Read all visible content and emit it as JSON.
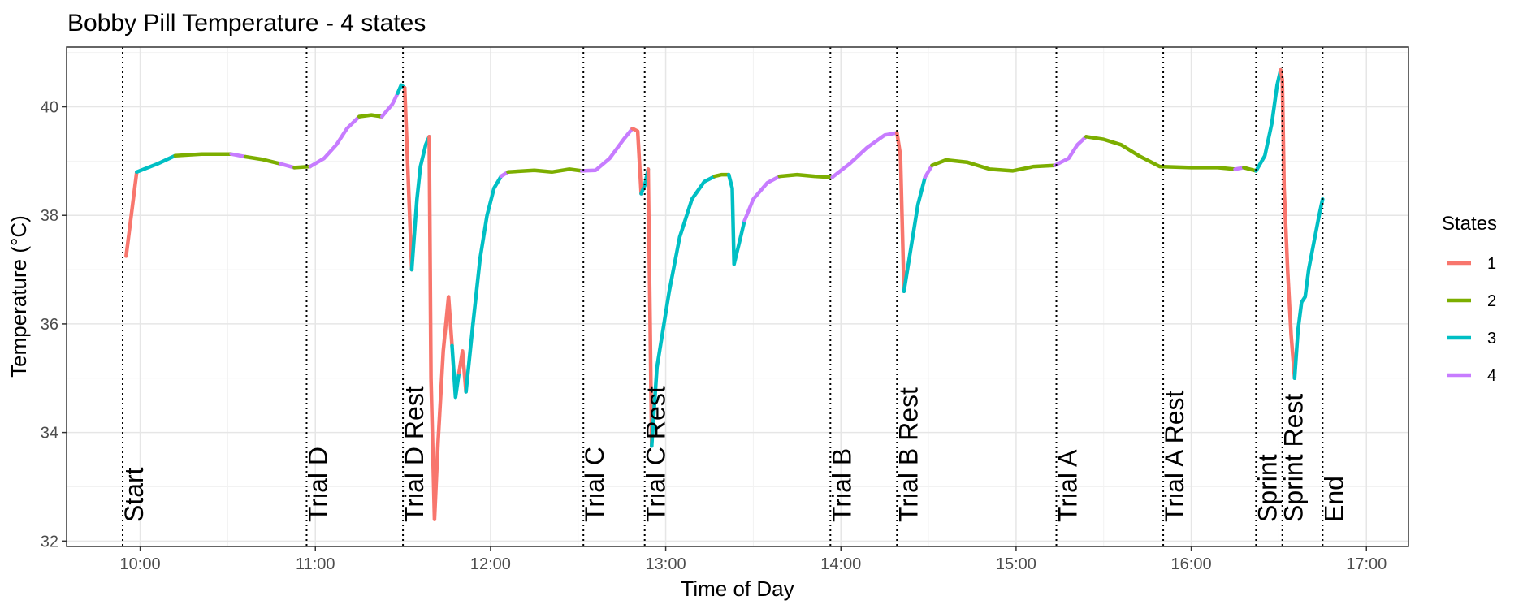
{
  "chart_data": {
    "type": "line",
    "title": "Bobby Pill Temperature - 4 states",
    "xlabel": "Time of Day",
    "ylabel": "Temperature (°C)",
    "x_unit": "hours of day",
    "xlim": [
      9.58,
      17.24
    ],
    "ylim": [
      31.9,
      41.1
    ],
    "x_ticks": [
      {
        "value": 10,
        "label": "10:00"
      },
      {
        "value": 11,
        "label": "11:00"
      },
      {
        "value": 12,
        "label": "12:00"
      },
      {
        "value": 13,
        "label": "13:00"
      },
      {
        "value": 14,
        "label": "14:00"
      },
      {
        "value": 15,
        "label": "15:00"
      },
      {
        "value": 16,
        "label": "16:00"
      },
      {
        "value": 17,
        "label": "17:00"
      }
    ],
    "y_ticks": [
      {
        "value": 32,
        "label": "32"
      },
      {
        "value": 34,
        "label": "34"
      },
      {
        "value": 36,
        "label": "36"
      },
      {
        "value": 38,
        "label": "38"
      },
      {
        "value": 40,
        "label": "40"
      }
    ],
    "grid": true,
    "legend": {
      "title": "States",
      "position": "right",
      "items": [
        {
          "label": "1",
          "color": "#F8766D"
        },
        {
          "label": "2",
          "color": "#7CAE00"
        },
        {
          "label": "3",
          "color": "#00BFC4"
        },
        {
          "label": "4",
          "color": "#C77CFF"
        }
      ]
    },
    "events": [
      {
        "label": "Start",
        "x": 9.9
      },
      {
        "label": "Trial D",
        "x": 10.95
      },
      {
        "label": "Trial D Rest",
        "x": 11.5
      },
      {
        "label": "Trial C",
        "x": 12.53
      },
      {
        "label": "Trial C Rest",
        "x": 12.88
      },
      {
        "label": "Trial B",
        "x": 13.94
      },
      {
        "label": "Trial B Rest",
        "x": 14.32
      },
      {
        "label": "Trial A",
        "x": 15.23
      },
      {
        "label": "Trial A Rest",
        "x": 15.84
      },
      {
        "label": "Sprint",
        "x": 16.37
      },
      {
        "label": "Sprint Rest",
        "x": 16.52
      },
      {
        "label": "End",
        "x": 16.75
      }
    ],
    "segments": [
      {
        "state": "1",
        "points": [
          [
            9.92,
            37.25
          ],
          [
            9.98,
            38.8
          ]
        ]
      },
      {
        "state": "3",
        "points": [
          [
            9.98,
            38.8
          ],
          [
            10.1,
            38.95
          ],
          [
            10.2,
            39.1
          ]
        ]
      },
      {
        "state": "2",
        "points": [
          [
            10.2,
            39.1
          ],
          [
            10.35,
            39.13
          ],
          [
            10.52,
            39.13
          ]
        ]
      },
      {
        "state": "4",
        "points": [
          [
            10.52,
            39.13
          ],
          [
            10.6,
            39.08
          ]
        ]
      },
      {
        "state": "2",
        "points": [
          [
            10.6,
            39.08
          ],
          [
            10.7,
            39.03
          ],
          [
            10.8,
            38.95
          ]
        ]
      },
      {
        "state": "4",
        "points": [
          [
            10.8,
            38.95
          ],
          [
            10.88,
            38.88
          ]
        ]
      },
      {
        "state": "2",
        "points": [
          [
            10.88,
            38.88
          ],
          [
            10.97,
            38.9
          ]
        ]
      },
      {
        "state": "4",
        "points": [
          [
            10.97,
            38.9
          ],
          [
            11.05,
            39.05
          ],
          [
            11.12,
            39.3
          ],
          [
            11.18,
            39.6
          ],
          [
            11.25,
            39.82
          ]
        ]
      },
      {
        "state": "2",
        "points": [
          [
            11.25,
            39.82
          ],
          [
            11.32,
            39.85
          ],
          [
            11.38,
            39.82
          ]
        ]
      },
      {
        "state": "4",
        "points": [
          [
            11.38,
            39.82
          ],
          [
            11.44,
            40.05
          ],
          [
            11.47,
            40.25
          ]
        ]
      },
      {
        "state": "3",
        "points": [
          [
            11.47,
            40.25
          ],
          [
            11.49,
            40.4
          ],
          [
            11.51,
            40.35
          ]
        ]
      },
      {
        "state": "1",
        "points": [
          [
            11.51,
            40.35
          ],
          [
            11.55,
            37.0
          ]
        ]
      },
      {
        "state": "3",
        "points": [
          [
            11.55,
            37.0
          ],
          [
            11.58,
            38.3
          ],
          [
            11.6,
            38.9
          ],
          [
            11.63,
            39.3
          ],
          [
            11.65,
            39.45
          ]
        ]
      },
      {
        "state": "1",
        "points": [
          [
            11.65,
            39.45
          ],
          [
            11.66,
            35.0
          ],
          [
            11.68,
            32.4
          ],
          [
            11.7,
            33.8
          ],
          [
            11.73,
            35.5
          ],
          [
            11.76,
            36.5
          ],
          [
            11.78,
            35.6
          ]
        ]
      },
      {
        "state": "3",
        "points": [
          [
            11.78,
            35.6
          ],
          [
            11.8,
            34.65
          ],
          [
            11.82,
            35.1
          ]
        ]
      },
      {
        "state": "1",
        "points": [
          [
            11.82,
            35.1
          ],
          [
            11.84,
            35.5
          ],
          [
            11.86,
            34.75
          ]
        ]
      },
      {
        "state": "3",
        "points": [
          [
            11.86,
            34.75
          ],
          [
            11.9,
            36.0
          ],
          [
            11.94,
            37.2
          ],
          [
            11.98,
            38.0
          ],
          [
            12.02,
            38.5
          ],
          [
            12.06,
            38.72
          ]
        ]
      },
      {
        "state": "4",
        "points": [
          [
            12.06,
            38.72
          ],
          [
            12.1,
            38.8
          ]
        ]
      },
      {
        "state": "2",
        "points": [
          [
            12.1,
            38.8
          ],
          [
            12.25,
            38.83
          ],
          [
            12.35,
            38.8
          ],
          [
            12.45,
            38.85
          ],
          [
            12.52,
            38.82
          ]
        ]
      },
      {
        "state": "4",
        "points": [
          [
            12.52,
            38.82
          ],
          [
            12.6,
            38.83
          ],
          [
            12.68,
            39.05
          ],
          [
            12.76,
            39.4
          ],
          [
            12.81,
            39.6
          ]
        ]
      },
      {
        "state": "1",
        "points": [
          [
            12.81,
            39.6
          ],
          [
            12.84,
            39.55
          ],
          [
            12.86,
            38.4
          ]
        ]
      },
      {
        "state": "3",
        "points": [
          [
            12.86,
            38.4
          ],
          [
            12.88,
            38.55
          ],
          [
            12.9,
            38.85
          ]
        ]
      },
      {
        "state": "1",
        "points": [
          [
            12.9,
            38.85
          ],
          [
            12.92,
            33.75
          ]
        ]
      },
      {
        "state": "3",
        "points": [
          [
            12.92,
            33.75
          ],
          [
            12.95,
            35.2
          ],
          [
            13.02,
            36.6
          ],
          [
            13.08,
            37.6
          ],
          [
            13.15,
            38.3
          ],
          [
            13.22,
            38.62
          ],
          [
            13.28,
            38.72
          ]
        ]
      },
      {
        "state": "2",
        "points": [
          [
            13.28,
            38.72
          ],
          [
            13.32,
            38.75
          ],
          [
            13.36,
            38.75
          ]
        ]
      },
      {
        "state": "3",
        "points": [
          [
            13.36,
            38.75
          ],
          [
            13.38,
            38.5
          ],
          [
            13.39,
            37.1
          ],
          [
            13.42,
            37.5
          ],
          [
            13.45,
            37.9
          ]
        ]
      },
      {
        "state": "4",
        "points": [
          [
            13.45,
            37.9
          ],
          [
            13.5,
            38.3
          ],
          [
            13.58,
            38.6
          ],
          [
            13.65,
            38.72
          ]
        ]
      },
      {
        "state": "2",
        "points": [
          [
            13.65,
            38.72
          ],
          [
            13.75,
            38.75
          ],
          [
            13.85,
            38.72
          ],
          [
            13.95,
            38.7
          ]
        ]
      },
      {
        "state": "4",
        "points": [
          [
            13.95,
            38.7
          ],
          [
            14.05,
            38.95
          ],
          [
            14.15,
            39.25
          ],
          [
            14.25,
            39.48
          ],
          [
            14.32,
            39.52
          ]
        ]
      },
      {
        "state": "1",
        "points": [
          [
            14.32,
            39.52
          ],
          [
            14.34,
            39.1
          ],
          [
            14.36,
            36.6
          ]
        ]
      },
      {
        "state": "3",
        "points": [
          [
            14.36,
            36.6
          ],
          [
            14.4,
            37.4
          ],
          [
            14.44,
            38.2
          ],
          [
            14.48,
            38.7
          ]
        ]
      },
      {
        "state": "4",
        "points": [
          [
            14.48,
            38.7
          ],
          [
            14.52,
            38.92
          ]
        ]
      },
      {
        "state": "2",
        "points": [
          [
            14.52,
            38.92
          ],
          [
            14.6,
            39.02
          ],
          [
            14.72,
            38.98
          ],
          [
            14.85,
            38.85
          ],
          [
            14.98,
            38.82
          ],
          [
            15.1,
            38.9
          ],
          [
            15.22,
            38.92
          ]
        ]
      },
      {
        "state": "4",
        "points": [
          [
            15.22,
            38.92
          ],
          [
            15.3,
            39.05
          ],
          [
            15.35,
            39.3
          ],
          [
            15.4,
            39.45
          ]
        ]
      },
      {
        "state": "2",
        "points": [
          [
            15.4,
            39.45
          ],
          [
            15.5,
            39.4
          ],
          [
            15.6,
            39.3
          ],
          [
            15.7,
            39.1
          ],
          [
            15.82,
            38.9
          ],
          [
            16.0,
            38.88
          ],
          [
            16.15,
            38.88
          ],
          [
            16.25,
            38.85
          ]
        ]
      },
      {
        "state": "4",
        "points": [
          [
            16.25,
            38.85
          ],
          [
            16.3,
            38.88
          ]
        ]
      },
      {
        "state": "2",
        "points": [
          [
            16.3,
            38.88
          ],
          [
            16.37,
            38.82
          ]
        ]
      },
      {
        "state": "3",
        "points": [
          [
            16.37,
            38.82
          ],
          [
            16.42,
            39.1
          ],
          [
            16.46,
            39.7
          ],
          [
            16.49,
            40.4
          ],
          [
            16.51,
            40.68
          ]
        ]
      },
      {
        "state": "1",
        "points": [
          [
            16.51,
            40.68
          ],
          [
            16.52,
            40.5
          ],
          [
            16.53,
            38.5
          ],
          [
            16.55,
            37.0
          ],
          [
            16.57,
            35.8
          ],
          [
            16.59,
            35.0
          ]
        ]
      },
      {
        "state": "3",
        "points": [
          [
            16.59,
            35.0
          ],
          [
            16.61,
            35.9
          ],
          [
            16.63,
            36.4
          ],
          [
            16.65,
            36.5
          ],
          [
            16.67,
            37.0
          ],
          [
            16.7,
            37.5
          ],
          [
            16.73,
            38.0
          ],
          [
            16.75,
            38.3
          ]
        ]
      }
    ]
  }
}
